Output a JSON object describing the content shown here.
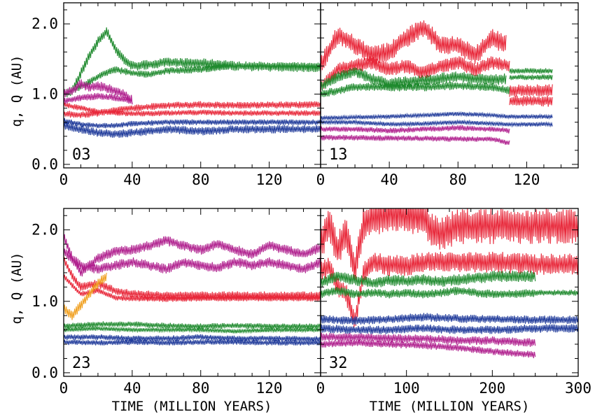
{
  "figure": {
    "ylabel": "q, Q (AU)",
    "xlabel": "TIME (MILLION YEARS)"
  },
  "colors": {
    "red": "#e8283a",
    "green": "#1f8a2e",
    "blue": "#1f3a9a",
    "magenta": "#b0208e",
    "orange": "#f0a020"
  },
  "chart_data": [
    {
      "type": "line",
      "label": "03",
      "xlim": [
        0,
        150
      ],
      "ylim": [
        -0.05,
        2.3
      ],
      "xticks": [
        0,
        40,
        80,
        120
      ],
      "xtick_labels": [
        "0",
        "40",
        "80",
        "120"
      ],
      "yticks": [
        0.0,
        1.0,
        2.0
      ],
      "ytick_labels": [
        "0.0",
        "1.0",
        "2.0"
      ],
      "series": [
        {
          "color": "green",
          "x": [
            0,
            5,
            10,
            15,
            20,
            25,
            30,
            35,
            40,
            50,
            60,
            80,
            95,
            100,
            120,
            150
          ],
          "y": [
            1.0,
            1.05,
            1.3,
            1.55,
            1.75,
            1.9,
            1.65,
            1.5,
            1.4,
            1.42,
            1.45,
            1.44,
            1.42,
            1.4,
            1.39,
            1.38
          ],
          "band": 0.07
        },
        {
          "color": "green",
          "x": [
            0,
            10,
            20,
            30,
            40,
            50,
            60,
            80,
            100,
            150
          ],
          "y": [
            1.0,
            1.1,
            1.25,
            1.35,
            1.3,
            1.28,
            1.33,
            1.35,
            1.4,
            1.4
          ],
          "band": 0.05
        },
        {
          "color": "magenta",
          "x": [
            0,
            5,
            10,
            15,
            20,
            25,
            30,
            35,
            40
          ],
          "y": [
            1.0,
            1.05,
            1.15,
            1.1,
            1.12,
            1.08,
            1.05,
            1.0,
            0.92
          ],
          "band": 0.07
        },
        {
          "color": "magenta",
          "x": [
            0,
            10,
            20,
            30,
            40
          ],
          "y": [
            0.9,
            0.95,
            0.97,
            0.95,
            0.9
          ],
          "band": 0.05
        },
        {
          "color": "red",
          "x": [
            0,
            10,
            20,
            30,
            40,
            60,
            80,
            100,
            150
          ],
          "y": [
            0.72,
            0.7,
            0.73,
            0.77,
            0.8,
            0.84,
            0.85,
            0.84,
            0.85
          ],
          "band": 0.05
        },
        {
          "color": "red",
          "x": [
            0,
            20,
            40,
            60,
            80,
            100,
            150
          ],
          "y": [
            0.85,
            0.75,
            0.72,
            0.73,
            0.74,
            0.73,
            0.73
          ],
          "band": 0.04
        },
        {
          "color": "blue",
          "x": [
            0,
            10,
            20,
            30,
            40,
            60,
            80,
            100,
            150
          ],
          "y": [
            0.62,
            0.57,
            0.55,
            0.55,
            0.58,
            0.6,
            0.6,
            0.6,
            0.6
          ],
          "band": 0.04
        },
        {
          "color": "blue",
          "x": [
            0,
            10,
            20,
            30,
            40,
            60,
            80,
            100,
            150
          ],
          "y": [
            0.55,
            0.5,
            0.45,
            0.43,
            0.45,
            0.5,
            0.47,
            0.5,
            0.5
          ],
          "band": 0.06
        }
      ]
    },
    {
      "type": "line",
      "label": "13",
      "xlim": [
        0,
        150
      ],
      "ylim": [
        -0.05,
        2.3
      ],
      "xticks": [
        0,
        40,
        80,
        120
      ],
      "xtick_labels": [
        "0",
        "40",
        "80",
        "120"
      ],
      "yticks": [
        0.0,
        1.0,
        2.0
      ],
      "ytick_labels": [],
      "series": [
        {
          "color": "red",
          "x": [
            0,
            10,
            20,
            30,
            40,
            50,
            60,
            70,
            80,
            90,
            100,
            108
          ],
          "y": [
            1.4,
            1.85,
            1.7,
            1.55,
            1.6,
            1.8,
            1.95,
            1.7,
            1.7,
            1.55,
            1.8,
            1.7
          ],
          "band": 0.14
        },
        {
          "color": "red",
          "x": [
            0,
            10,
            20,
            30,
            40,
            50,
            60,
            70,
            80,
            90,
            100,
            110
          ],
          "y": [
            1.1,
            1.35,
            1.4,
            1.45,
            1.35,
            1.4,
            1.3,
            1.4,
            1.45,
            1.35,
            1.45,
            1.4
          ],
          "band": 0.1
        },
        {
          "color": "red",
          "x": [
            110,
            135
          ],
          "y": [
            1.05,
            1.05
          ],
          "band": 0.09
        },
        {
          "color": "red",
          "x": [
            110,
            135
          ],
          "y": [
            0.9,
            0.9
          ],
          "band": 0.08
        },
        {
          "color": "green",
          "x": [
            0,
            10,
            20,
            30,
            40,
            60,
            80,
            100,
            108
          ],
          "y": [
            1.1,
            1.25,
            1.32,
            1.22,
            1.15,
            1.2,
            1.25,
            1.2,
            1.22
          ],
          "band": 0.08
        },
        {
          "color": "green",
          "x": [
            0,
            20,
            40,
            60,
            80,
            100,
            110
          ],
          "y": [
            1.0,
            1.1,
            1.1,
            1.1,
            1.12,
            1.1,
            1.05
          ],
          "band": 0.06
        },
        {
          "color": "green",
          "x": [
            110,
            135
          ],
          "y": [
            1.33,
            1.33
          ],
          "band": 0.04
        },
        {
          "color": "green",
          "x": [
            110,
            135
          ],
          "y": [
            1.24,
            1.24
          ],
          "band": 0.04
        },
        {
          "color": "blue",
          "x": [
            0,
            20,
            40,
            60,
            80,
            100,
            110,
            135
          ],
          "y": [
            0.66,
            0.67,
            0.68,
            0.7,
            0.72,
            0.7,
            0.68,
            0.68
          ],
          "band": 0.03
        },
        {
          "color": "blue",
          "x": [
            0,
            20,
            40,
            60,
            80,
            100,
            110,
            135
          ],
          "y": [
            0.6,
            0.6,
            0.57,
            0.58,
            0.6,
            0.58,
            0.57,
            0.57
          ],
          "band": 0.03
        },
        {
          "color": "magenta",
          "x": [
            0,
            20,
            40,
            60,
            80,
            100,
            110
          ],
          "y": [
            0.5,
            0.5,
            0.48,
            0.5,
            0.52,
            0.5,
            0.48
          ],
          "band": 0.04
        },
        {
          "color": "magenta",
          "x": [
            0,
            20,
            40,
            60,
            80,
            100,
            110
          ],
          "y": [
            0.38,
            0.38,
            0.37,
            0.37,
            0.36,
            0.36,
            0.3
          ],
          "band": 0.04
        }
      ]
    },
    {
      "type": "line",
      "label": "23",
      "xlim": [
        0,
        150
      ],
      "ylim": [
        -0.05,
        2.3
      ],
      "xticks": [
        0,
        40,
        80,
        120
      ],
      "xtick_labels": [
        "0",
        "40",
        "80",
        "120"
      ],
      "yticks": [
        0.0,
        1.0,
        2.0
      ],
      "ytick_labels": [
        "0.0",
        "1.0",
        "2.0"
      ],
      "series": [
        {
          "color": "magenta",
          "x": [
            0,
            5,
            10,
            20,
            30,
            40,
            50,
            60,
            70,
            80,
            90,
            100,
            110,
            120,
            130,
            140,
            150
          ],
          "y": [
            1.9,
            1.6,
            1.4,
            1.6,
            1.7,
            1.72,
            1.78,
            1.85,
            1.78,
            1.72,
            1.8,
            1.72,
            1.66,
            1.78,
            1.72,
            1.66,
            1.75
          ],
          "band": 0.07
        },
        {
          "color": "magenta",
          "x": [
            0,
            10,
            20,
            30,
            40,
            50,
            60,
            70,
            80,
            90,
            100,
            110,
            120,
            130,
            140,
            150
          ],
          "y": [
            1.7,
            1.5,
            1.45,
            1.5,
            1.55,
            1.5,
            1.45,
            1.55,
            1.5,
            1.47,
            1.55,
            1.5,
            1.55,
            1.5,
            1.45,
            1.55
          ],
          "band": 0.07
        },
        {
          "color": "red",
          "x": [
            0,
            5,
            10,
            20,
            30,
            40,
            60,
            80,
            100,
            120,
            150
          ],
          "y": [
            1.6,
            1.35,
            1.2,
            1.25,
            1.15,
            1.1,
            1.08,
            1.08,
            1.08,
            1.08,
            1.08
          ],
          "band": 0.06
        },
        {
          "color": "red",
          "x": [
            0,
            10,
            20,
            30,
            40,
            60,
            80,
            100,
            120,
            150
          ],
          "y": [
            1.35,
            1.1,
            1.15,
            1.05,
            1.04,
            1.03,
            1.04,
            1.04,
            1.04,
            1.04
          ],
          "band": 0.04
        },
        {
          "color": "orange",
          "x": [
            0,
            5,
            10,
            15,
            20,
            25
          ],
          "y": [
            0.9,
            0.8,
            0.95,
            1.1,
            1.25,
            1.35
          ],
          "band": 0.07
        },
        {
          "color": "green",
          "x": [
            0,
            20,
            40,
            60,
            80,
            100,
            120,
            150
          ],
          "y": [
            0.65,
            0.68,
            0.68,
            0.66,
            0.65,
            0.66,
            0.65,
            0.65
          ],
          "band": 0.04
        },
        {
          "color": "green",
          "x": [
            0,
            20,
            40,
            60,
            80,
            100,
            120,
            150
          ],
          "y": [
            0.6,
            0.62,
            0.6,
            0.6,
            0.6,
            0.58,
            0.6,
            0.6
          ],
          "band": 0.03
        },
        {
          "color": "blue",
          "x": [
            0,
            20,
            40,
            60,
            80,
            100,
            120,
            150
          ],
          "y": [
            0.5,
            0.5,
            0.48,
            0.48,
            0.5,
            0.48,
            0.48,
            0.47
          ],
          "band": 0.04
        },
        {
          "color": "blue",
          "x": [
            0,
            20,
            40,
            60,
            80,
            100,
            120,
            150
          ],
          "y": [
            0.43,
            0.42,
            0.43,
            0.42,
            0.43,
            0.43,
            0.42,
            0.42
          ],
          "band": 0.04
        }
      ]
    },
    {
      "type": "line",
      "label": "32",
      "xlim": [
        0,
        300
      ],
      "ylim": [
        -0.05,
        2.3
      ],
      "xticks": [
        0,
        100,
        200,
        300
      ],
      "xtick_labels": [
        "0",
        "100",
        "200",
        "300"
      ],
      "yticks": [
        0.0,
        1.0,
        2.0
      ],
      "ytick_labels": [],
      "series": [
        {
          "color": "red",
          "x": [
            0,
            10,
            20,
            30,
            40,
            50,
            60,
            80,
            100,
            120,
            130,
            140,
            160,
            180,
            200,
            250,
            300
          ],
          "y": [
            1.8,
            2.1,
            1.7,
            2.0,
            1.4,
            2.1,
            2.15,
            2.2,
            2.2,
            2.15,
            2.0,
            1.95,
            2.05,
            2.05,
            2.05,
            2.05,
            2.05
          ],
          "band": 0.25
        },
        {
          "color": "red",
          "x": [
            0,
            10,
            20,
            30,
            40,
            50,
            60,
            80,
            100,
            120,
            140,
            160,
            180,
            200,
            250,
            300
          ],
          "y": [
            1.4,
            1.5,
            1.2,
            1.1,
            0.7,
            1.4,
            1.55,
            1.5,
            1.5,
            1.55,
            1.55,
            1.55,
            1.55,
            1.55,
            1.52,
            1.52
          ],
          "band": 0.15
        },
        {
          "color": "green",
          "x": [
            0,
            20,
            40,
            60,
            80,
            100,
            120,
            140,
            160,
            180,
            200,
            220,
            250
          ],
          "y": [
            1.25,
            1.35,
            1.3,
            1.25,
            1.3,
            1.28,
            1.3,
            1.28,
            1.3,
            1.32,
            1.35,
            1.35,
            1.35
          ],
          "band": 0.08
        },
        {
          "color": "green",
          "x": [
            0,
            20,
            40,
            60,
            80,
            100,
            120,
            140,
            160,
            180,
            200,
            220,
            250
          ],
          "y": [
            1.1,
            1.15,
            1.1,
            1.12,
            1.1,
            1.12,
            1.1,
            1.12,
            1.15,
            1.12,
            1.1,
            1.1,
            1.12
          ],
          "band": 0.06
        },
        {
          "color": "green",
          "x": [
            250,
            300
          ],
          "y": [
            1.12,
            1.12
          ],
          "band": 0.04
        },
        {
          "color": "blue",
          "x": [
            0,
            40,
            80,
            120,
            160,
            200,
            250,
            300
          ],
          "y": [
            0.75,
            0.73,
            0.75,
            0.78,
            0.76,
            0.75,
            0.74,
            0.74
          ],
          "band": 0.06
        },
        {
          "color": "blue",
          "x": [
            0,
            40,
            80,
            120,
            160,
            200,
            250,
            300
          ],
          "y": [
            0.62,
            0.6,
            0.6,
            0.62,
            0.6,
            0.6,
            0.62,
            0.62
          ],
          "band": 0.06
        },
        {
          "color": "magenta",
          "x": [
            0,
            40,
            80,
            120,
            160,
            200,
            250
          ],
          "y": [
            0.5,
            0.5,
            0.48,
            0.48,
            0.45,
            0.45,
            0.42
          ],
          "band": 0.06
        },
        {
          "color": "magenta",
          "x": [
            0,
            40,
            80,
            120,
            160,
            200,
            250
          ],
          "y": [
            0.4,
            0.42,
            0.4,
            0.38,
            0.35,
            0.3,
            0.25
          ],
          "band": 0.05
        }
      ]
    }
  ]
}
